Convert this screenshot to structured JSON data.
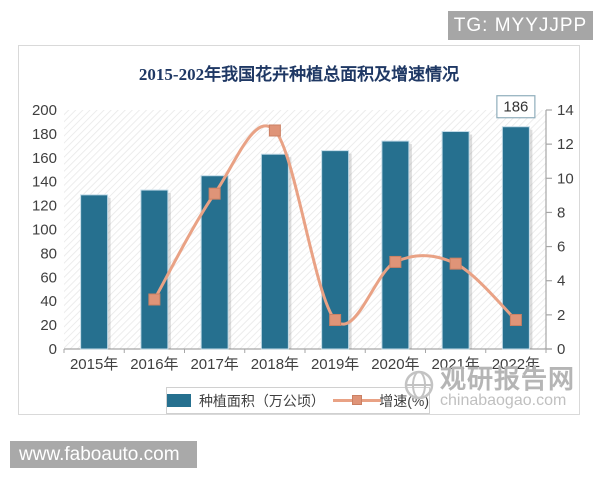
{
  "overlays": {
    "tg_badge": "TG: MYYJJPP",
    "site_badge": "www.faboauto.com"
  },
  "watermark": {
    "logo": "globe-icon",
    "name": "观研报告网",
    "domain": "chinabaogao.com"
  },
  "chart_data": {
    "type": "bar+line",
    "title": "2015-202年我国花卉种植总面积及增速情况",
    "categories": [
      "2015年",
      "2016年",
      "2017年",
      "2018年",
      "2019年",
      "2020年",
      "2021年",
      "2022年"
    ],
    "series": [
      {
        "name": "种植面积（万公顷）",
        "type": "bar",
        "axis": "left",
        "color": "#26708f",
        "values": [
          129,
          133,
          145,
          163,
          166,
          174,
          182,
          186
        ]
      },
      {
        "name": "增速(%)",
        "type": "line",
        "axis": "right",
        "color": "#e9a285",
        "marker_color": "#df9478",
        "values": [
          null,
          2.9,
          9.1,
          12.8,
          1.7,
          5.1,
          5.0,
          1.7
        ]
      }
    ],
    "left_axis": {
      "min": 0,
      "max": 200,
      "step": 20
    },
    "right_axis": {
      "min": 0,
      "max": 14,
      "step": 2
    },
    "data_labels": [
      {
        "category": "2022年",
        "text": "186"
      }
    ],
    "legend_position": "bottom",
    "grid": false,
    "plot_background": "diagonal-hatch"
  },
  "colors": {
    "bar": "#26708f",
    "line": "#e9a285",
    "title": "#1f3864",
    "axis_text": "#3f3f3f",
    "axis_line": "#a6a6a6",
    "badge_bg": "#a6a6a6",
    "card_border": "#d9d9d9"
  }
}
